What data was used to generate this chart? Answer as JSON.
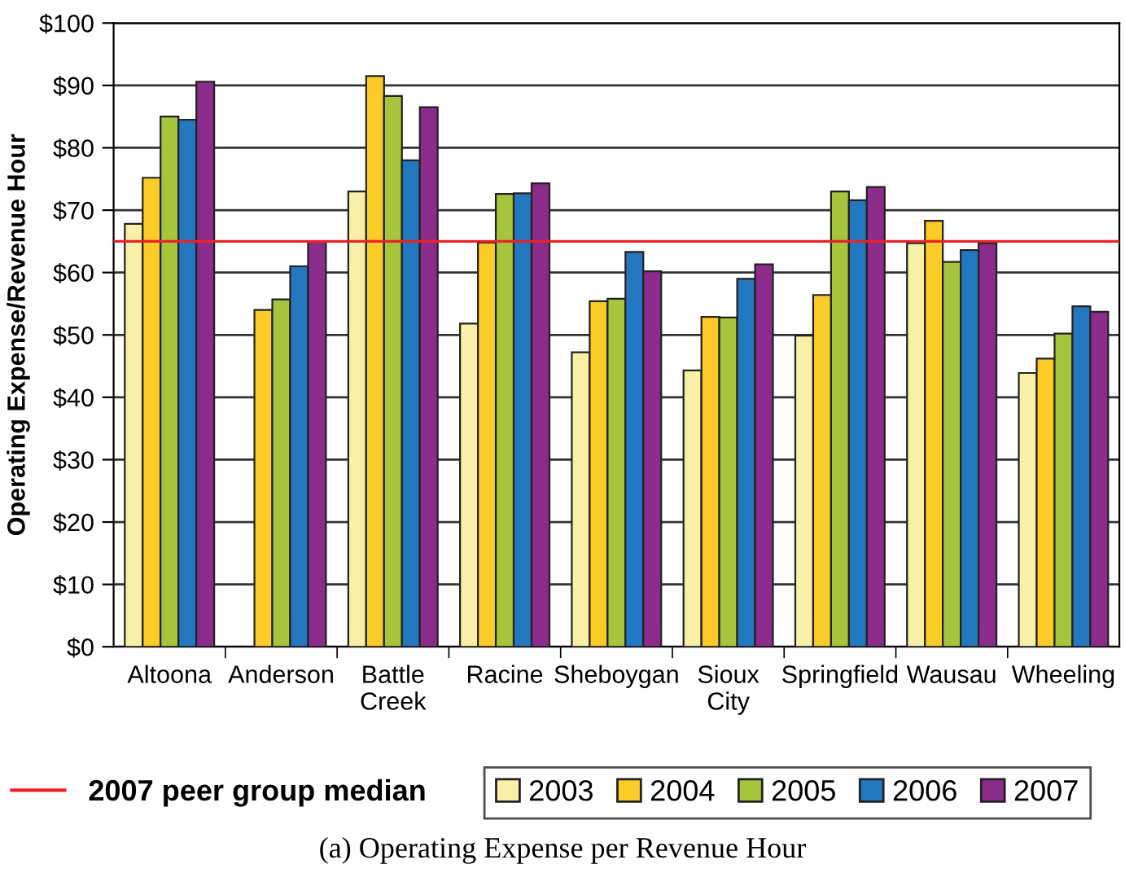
{
  "chart_data": {
    "type": "bar",
    "ylabel": "Operating Expense/Revenue Hour",
    "categories": [
      "Altoona",
      "Anderson",
      "Battle\nCreek",
      "Racine",
      "Sheboygan",
      "Sioux\nCity",
      "Springfield",
      "Wausau",
      "Wheeling"
    ],
    "series": [
      {
        "name": "2003",
        "color": "#f8f0a8",
        "values": [
          67.8,
          null,
          73,
          51.8,
          47.2,
          44.3,
          49.9,
          64.7,
          43.9
        ]
      },
      {
        "name": "2004",
        "color": "#fbcb27",
        "values": [
          75.2,
          54,
          91.5,
          64.8,
          55.4,
          52.9,
          56.4,
          68.3,
          46.2
        ]
      },
      {
        "name": "2005",
        "color": "#a6c43c",
        "values": [
          85,
          55.7,
          88.3,
          72.6,
          55.8,
          52.8,
          73,
          61.7,
          50.2
        ]
      },
      {
        "name": "2006",
        "color": "#2377bf",
        "values": [
          84.5,
          61,
          78,
          72.7,
          63.3,
          59,
          71.6,
          63.6,
          54.6
        ]
      },
      {
        "name": "2007",
        "color": "#8b2c8b",
        "values": [
          90.6,
          65,
          86.5,
          74.3,
          60.2,
          61.3,
          73.7,
          64.7,
          53.7
        ]
      }
    ],
    "ylim": [
      0,
      100
    ],
    "yticks": [
      {
        "value": 0,
        "label": "$0"
      },
      {
        "value": 10,
        "label": "$10"
      },
      {
        "value": 20,
        "label": "$20"
      },
      {
        "value": 30,
        "label": "$30"
      },
      {
        "value": 40,
        "label": "$40"
      },
      {
        "value": 50,
        "label": "$50"
      },
      {
        "value": 60,
        "label": "$60"
      },
      {
        "value": 70,
        "label": "$70"
      },
      {
        "value": 80,
        "label": "$80"
      },
      {
        "value": 90,
        "label": "$90"
      },
      {
        "value": 100,
        "label": "$100"
      }
    ],
    "ref_lines": [
      {
        "axis": "y",
        "value": 65,
        "label": "2007 peer group median",
        "color": "#e8232a"
      }
    ],
    "grid": "y",
    "legend": "bottom",
    "annotations": [
      "(a) Operating Expense per Revenue Hour"
    ]
  }
}
